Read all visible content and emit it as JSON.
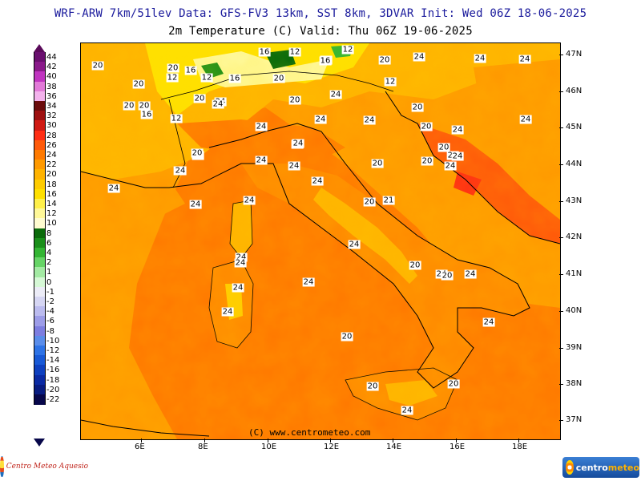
{
  "header": {
    "line1": "WRF-ARW 7km/51lev  Data: GFS-FV3 13km, SST 8km, 3DVAR  Init: Wed 06Z 18-06-2025",
    "line2": "2m Temperature (C)  Valid: Thu 06Z 19-06-2025"
  },
  "credit": "(C) www.centrometeo.com",
  "legend": {
    "unit": "C",
    "entries": [
      {
        "label": "44",
        "color": "#6a0f6f"
      },
      {
        "label": "42",
        "color": "#8a1a8a"
      },
      {
        "label": "40",
        "color": "#c035c0"
      },
      {
        "label": "38",
        "color": "#e27ad8"
      },
      {
        "label": "36",
        "color": "#f3b2ec"
      },
      {
        "label": "34",
        "color": "#6b0c0c"
      },
      {
        "label": "32",
        "color": "#9e1111"
      },
      {
        "label": "30",
        "color": "#d01a13"
      },
      {
        "label": "28",
        "color": "#ff2e14"
      },
      {
        "label": "26",
        "color": "#ff5a0a"
      },
      {
        "label": "24",
        "color": "#ff7a00"
      },
      {
        "label": "22",
        "color": "#ff9a00"
      },
      {
        "label": "20",
        "color": "#ffb300"
      },
      {
        "label": "18",
        "color": "#ffcc00"
      },
      {
        "label": "16",
        "color": "#ffe000"
      },
      {
        "label": "14",
        "color": "#fff04a"
      },
      {
        "label": "12",
        "color": "#fff898"
      },
      {
        "label": "10",
        "color": "#fffcd0"
      },
      {
        "label": "8",
        "color": "#0b6b0b"
      },
      {
        "label": "6",
        "color": "#1a8f1a"
      },
      {
        "label": "4",
        "color": "#33b533"
      },
      {
        "label": "2",
        "color": "#66d466"
      },
      {
        "label": "1",
        "color": "#a3eaa3"
      },
      {
        "label": "0",
        "color": "#d6f8d6"
      },
      {
        "label": "-1",
        "color": "#ececf7"
      },
      {
        "label": "-2",
        "color": "#d6d6f3"
      },
      {
        "label": "-4",
        "color": "#bcbcef"
      },
      {
        "label": "-6",
        "color": "#9d9de8"
      },
      {
        "label": "-8",
        "color": "#7d7ee0"
      },
      {
        "label": "-10",
        "color": "#5a8dea"
      },
      {
        "label": "-12",
        "color": "#2e73e6"
      },
      {
        "label": "-14",
        "color": "#1859d6"
      },
      {
        "label": "-16",
        "color": "#0e40bf"
      },
      {
        "label": "-18",
        "color": "#0a2aa3"
      },
      {
        "label": "-20",
        "color": "#081c80"
      },
      {
        "label": "-22",
        "color": "#07074a"
      }
    ]
  },
  "axes": {
    "x_ticks": [
      "6E",
      "8E",
      "10E",
      "12E",
      "14E",
      "16E",
      "18E"
    ],
    "y_ticks": [
      "47N",
      "46N",
      "45N",
      "44N",
      "43N",
      "42N",
      "41N",
      "40N",
      "39N",
      "38N",
      "37N"
    ]
  },
  "map_labels": [
    {
      "t": "20"
    },
    {
      "t": "20"
    },
    {
      "t": "16"
    },
    {
      "t": "12"
    },
    {
      "t": "16"
    },
    {
      "t": "12"
    },
    {
      "t": "16"
    },
    {
      "t": "12"
    },
    {
      "t": "16"
    },
    {
      "t": "20"
    },
    {
      "t": "24"
    },
    {
      "t": "24"
    },
    {
      "t": "20"
    },
    {
      "t": "12"
    },
    {
      "t": "20"
    },
    {
      "t": "16"
    },
    {
      "t": "20"
    },
    {
      "t": "12"
    },
    {
      "t": "24"
    },
    {
      "t": "20"
    },
    {
      "t": "20"
    },
    {
      "t": "20"
    },
    {
      "t": "16"
    },
    {
      "t": "12"
    },
    {
      "t": "24"
    },
    {
      "t": "24"
    },
    {
      "t": "24"
    },
    {
      "t": "24"
    },
    {
      "t": "24"
    },
    {
      "t": "20"
    },
    {
      "t": "20"
    },
    {
      "t": "24"
    },
    {
      "t": "20"
    },
    {
      "t": "20"
    },
    {
      "t": "20"
    },
    {
      "t": "24"
    },
    {
      "t": "24"
    },
    {
      "t": "24"
    },
    {
      "t": "24"
    },
    {
      "t": "24"
    },
    {
      "t": "24"
    },
    {
      "t": "24"
    },
    {
      "t": "20"
    },
    {
      "t": "24"
    },
    {
      "t": "24"
    },
    {
      "t": "20"
    },
    {
      "t": "24"
    },
    {
      "t": "24"
    },
    {
      "t": "24"
    },
    {
      "t": "24"
    },
    {
      "t": "24"
    },
    {
      "t": "24"
    },
    {
      "t": "20"
    },
    {
      "t": "21"
    },
    {
      "t": "24"
    },
    {
      "t": "24"
    },
    {
      "t": "24"
    },
    {
      "t": "24"
    },
    {
      "t": "24"
    },
    {
      "t": "24"
    },
    {
      "t": "24"
    },
    {
      "t": "20"
    },
    {
      "t": "24"
    },
    {
      "t": "20"
    },
    {
      "t": "24"
    },
    {
      "t": "20"
    },
    {
      "t": "20"
    },
    {
      "t": "20"
    },
    {
      "t": "24"
    }
  ],
  "logos": {
    "left": "Centro Meteo Aquesio",
    "right_a": "centro",
    "right_b": "meteo"
  }
}
